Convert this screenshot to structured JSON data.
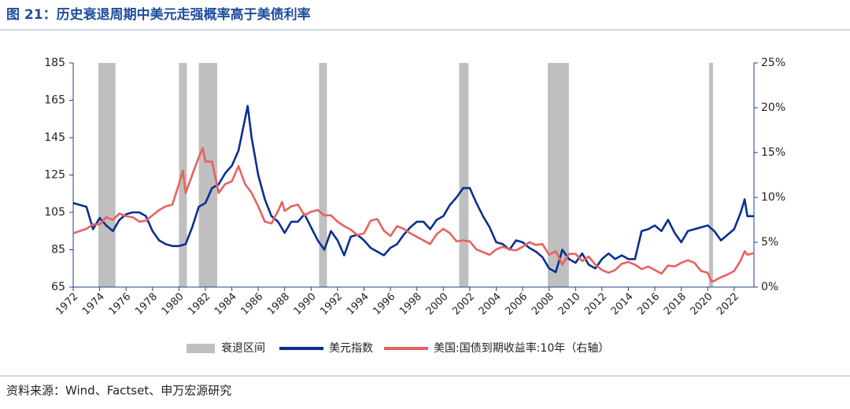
{
  "chart_data": {
    "type": "line",
    "title": "图 21：历史衰退周期中美元走强概率高于美债利率",
    "source": "资料来源：Wind、Factset、申万宏源研究",
    "xlim": [
      1972,
      2023.5
    ],
    "xticks": [
      1972,
      1974,
      1976,
      1978,
      1980,
      1982,
      1984,
      1986,
      1988,
      1990,
      1992,
      1994,
      1996,
      1998,
      2000,
      2002,
      2004,
      2006,
      2008,
      2010,
      2012,
      2014,
      2016,
      2018,
      2020,
      2022
    ],
    "ylim": [
      65,
      185
    ],
    "yticks": [
      65,
      85,
      105,
      125,
      145,
      165,
      185
    ],
    "y2lim": [
      0,
      25
    ],
    "y2ticks": [
      {
        "value": 0,
        "label": "0%"
      },
      {
        "value": 5,
        "label": "5%"
      },
      {
        "value": 10,
        "label": "10%"
      },
      {
        "value": 15,
        "label": "15%"
      },
      {
        "value": 20,
        "label": "20%"
      },
      {
        "value": 25,
        "label": "25%"
      }
    ],
    "recession": {
      "name": "衰退区间",
      "color": "#bfbfbf",
      "periods": [
        [
          1973.9,
          1975.2
        ],
        [
          1980.0,
          1980.6
        ],
        [
          1981.5,
          1982.9
        ],
        [
          1990.6,
          1991.2
        ],
        [
          2001.2,
          2001.9
        ],
        [
          2007.9,
          2009.5
        ],
        [
          2020.1,
          2020.4
        ]
      ]
    },
    "series": [
      {
        "name": "美元指数",
        "color": "#0b2f8f",
        "x": [
          1972.0,
          1972.5,
          1973.0,
          1973.5,
          1974.0,
          1974.5,
          1975.0,
          1975.5,
          1976.0,
          1976.5,
          1977.0,
          1977.5,
          1978.0,
          1978.5,
          1979.0,
          1979.5,
          1980.0,
          1980.5,
          1981.0,
          1981.5,
          1982.0,
          1982.5,
          1983.0,
          1983.5,
          1984.0,
          1984.5,
          1985.0,
          1985.2,
          1985.5,
          1986.0,
          1986.5,
          1987.0,
          1987.5,
          1988.0,
          1988.5,
          1989.0,
          1989.5,
          1990.0,
          1990.5,
          1991.0,
          1991.5,
          1992.0,
          1992.5,
          1993.0,
          1993.5,
          1994.0,
          1994.5,
          1995.0,
          1995.5,
          1996.0,
          1996.5,
          1997.0,
          1997.5,
          1998.0,
          1998.5,
          1999.0,
          1999.5,
          2000.0,
          2000.5,
          2001.0,
          2001.5,
          2002.0,
          2002.5,
          2003.0,
          2003.5,
          2004.0,
          2004.5,
          2005.0,
          2005.5,
          2006.0,
          2006.5,
          2007.0,
          2007.5,
          2008.0,
          2008.5,
          2009.0,
          2009.5,
          2010.0,
          2010.5,
          2011.0,
          2011.5,
          2012.0,
          2012.5,
          2013.0,
          2013.5,
          2014.0,
          2014.5,
          2015.0,
          2015.5,
          2016.0,
          2016.5,
          2017.0,
          2017.5,
          2018.0,
          2018.5,
          2019.0,
          2019.5,
          2020.0,
          2020.5,
          2021.0,
          2021.5,
          2022.0,
          2022.5,
          2022.8,
          2023.0,
          2023.5
        ],
        "values": [
          110,
          109,
          108,
          96,
          102,
          98,
          95,
          101,
          104,
          105,
          105,
          103,
          95,
          90,
          88,
          87,
          87,
          88,
          97,
          108,
          110,
          118,
          120,
          126,
          130,
          138,
          155,
          162,
          145,
          125,
          112,
          103,
          100,
          94,
          100,
          100,
          104,
          97,
          90,
          85,
          95,
          90,
          82,
          92,
          93,
          90,
          86,
          84,
          82,
          86,
          88,
          93,
          97,
          100,
          100,
          96,
          101,
          103,
          109,
          113,
          118,
          118,
          110,
          103,
          97,
          89,
          88,
          85,
          90,
          89,
          86,
          84,
          81,
          75,
          73,
          85,
          80,
          78,
          83,
          77,
          75,
          80,
          83,
          80,
          82,
          80,
          80,
          95,
          96,
          98,
          95,
          101,
          94,
          89,
          95,
          96,
          97,
          98,
          95,
          90,
          93,
          96,
          105,
          112,
          103,
          103
        ]
      },
      {
        "name": "美国:国债到期收益率:10年（右轴）",
        "color": "#e8625f",
        "axis": "y2",
        "x": [
          1972.0,
          1973.0,
          1973.5,
          1974.0,
          1974.5,
          1975.0,
          1975.5,
          1976.0,
          1976.5,
          1977.0,
          1977.5,
          1978.0,
          1978.5,
          1979.0,
          1979.5,
          1980.0,
          1980.3,
          1980.5,
          1981.0,
          1981.5,
          1981.8,
          1982.0,
          1982.5,
          1983.0,
          1983.5,
          1984.0,
          1984.5,
          1985.0,
          1985.5,
          1986.0,
          1986.5,
          1987.0,
          1987.5,
          1987.8,
          1988.0,
          1988.5,
          1989.0,
          1989.5,
          1990.0,
          1990.5,
          1991.0,
          1991.5,
          1992.0,
          1992.5,
          1993.0,
          1993.5,
          1994.0,
          1994.5,
          1995.0,
          1995.5,
          1996.0,
          1996.5,
          1997.0,
          1997.5,
          1998.0,
          1998.5,
          1999.0,
          1999.5,
          2000.0,
          2000.5,
          2001.0,
          2001.5,
          2002.0,
          2002.5,
          2003.0,
          2003.5,
          2004.0,
          2004.5,
          2005.0,
          2005.5,
          2006.0,
          2006.5,
          2007.0,
          2007.5,
          2008.0,
          2008.5,
          2009.0,
          2009.5,
          2010.0,
          2010.5,
          2011.0,
          2011.5,
          2012.0,
          2012.5,
          2013.0,
          2013.5,
          2014.0,
          2014.5,
          2015.0,
          2015.5,
          2016.0,
          2016.5,
          2017.0,
          2017.5,
          2018.0,
          2018.5,
          2019.0,
          2019.5,
          2020.0,
          2020.3,
          2020.5,
          2021.0,
          2021.5,
          2022.0,
          2022.5,
          2022.8,
          2023.0,
          2023.5
        ],
        "values": [
          6.0,
          6.5,
          7.0,
          7.0,
          7.8,
          7.5,
          8.2,
          7.9,
          7.8,
          7.3,
          7.4,
          8.0,
          8.6,
          9.0,
          9.2,
          11.5,
          13.0,
          10.5,
          12.5,
          14.5,
          15.5,
          14.0,
          14.0,
          10.5,
          11.5,
          11.8,
          13.5,
          11.5,
          10.5,
          9.0,
          7.3,
          7.1,
          8.5,
          9.5,
          8.5,
          9.0,
          9.2,
          8.0,
          8.4,
          8.6,
          8.0,
          8.0,
          7.3,
          6.8,
          6.4,
          5.8,
          6.0,
          7.4,
          7.6,
          6.3,
          5.7,
          6.8,
          6.5,
          6.0,
          5.6,
          5.2,
          4.8,
          5.9,
          6.5,
          6.0,
          5.1,
          5.2,
          5.1,
          4.2,
          3.9,
          3.6,
          4.2,
          4.5,
          4.2,
          4.1,
          4.5,
          5.0,
          4.7,
          4.8,
          3.6,
          4.0,
          2.5,
          3.7,
          3.7,
          2.9,
          3.4,
          2.5,
          1.9,
          1.6,
          1.9,
          2.6,
          2.8,
          2.5,
          2.0,
          2.3,
          1.9,
          1.5,
          2.4,
          2.3,
          2.7,
          3.0,
          2.7,
          1.8,
          1.6,
          0.6,
          0.7,
          1.1,
          1.4,
          1.8,
          3.0,
          4.0,
          3.6,
          3.8
        ]
      }
    ]
  }
}
